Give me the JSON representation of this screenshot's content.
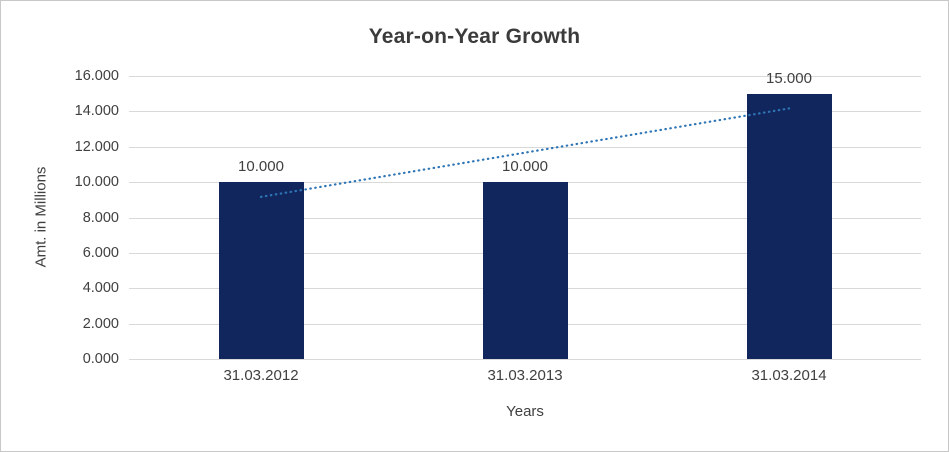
{
  "chart_data": {
    "type": "bar",
    "title": "Year-on-Year Growth",
    "xlabel": "Years",
    "ylabel": "Amt. in Millions",
    "categories": [
      "31.03.2012",
      "31.03.2013",
      "31.03.2014"
    ],
    "values": [
      10000,
      10000,
      15000
    ],
    "data_labels": [
      "10.000",
      "10.000",
      "15.000"
    ],
    "ylim": [
      0,
      16000
    ],
    "ytick_step": 2000,
    "ytick_labels": [
      "0.000",
      "2.000",
      "4.000",
      "6.000",
      "8.000",
      "10.000",
      "12.000",
      "14.000",
      "16.000"
    ],
    "grid": true,
    "legend": "none",
    "bar_color": "#12265E",
    "gridline_color": "#d9d9d9",
    "trendline": {
      "style": "dotted",
      "color": "#2E75B6",
      "start_value": 9167,
      "end_value": 14167
    }
  }
}
